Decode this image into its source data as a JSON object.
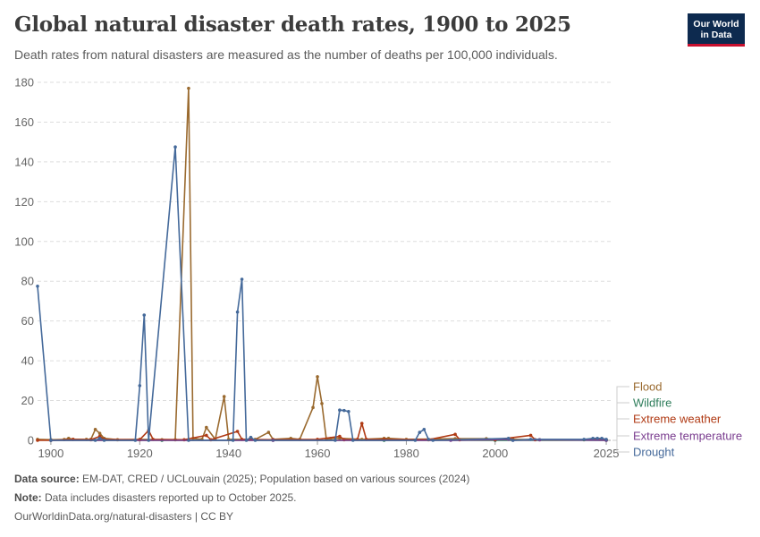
{
  "header": {
    "title": "Global natural disaster death rates, 1900 to 2025",
    "subtitle": "Death rates from natural disasters are measured as the number of deaths per 100,000 individuals."
  },
  "logo": {
    "line1": "Our World",
    "line2": "in Data"
  },
  "footer": {
    "source_label": "Data source:",
    "source_text": "EM-DAT, CRED / UCLouvain (2025); Population based on various sources (2024)",
    "note_label": "Note:",
    "note_text": "Data includes disasters reported up to October 2025.",
    "url_text": "OurWorldinData.org/natural-disasters | CC BY"
  },
  "chart_data": {
    "type": "line",
    "title": "Global natural disaster death rates, 1900 to 2025",
    "ylabel": "",
    "xlabel": "",
    "xlim": [
      1897,
      2026
    ],
    "ylim": [
      0,
      180
    ],
    "x_ticks": [
      1900,
      1920,
      1940,
      1960,
      1980,
      2000,
      2025
    ],
    "y_ticks": [
      0,
      20,
      40,
      60,
      80,
      100,
      120,
      140,
      160,
      180
    ],
    "grid": "horizontal dashed",
    "legend_placement": "right",
    "series": [
      {
        "name": "Flood",
        "color": "#9a6a2f",
        "points": [
          [
            1897,
            0.5
          ],
          [
            1900,
            0.3
          ],
          [
            1903,
            0.4
          ],
          [
            1904,
            1.0
          ],
          [
            1905,
            0.5
          ],
          [
            1908,
            0.5
          ],
          [
            1909,
            0.5
          ],
          [
            1910,
            5.5
          ],
          [
            1911,
            3.5
          ],
          [
            1912,
            1.0
          ],
          [
            1915,
            0.3
          ],
          [
            1920,
            0.5
          ],
          [
            1925,
            0.3
          ],
          [
            1928,
            0.3
          ],
          [
            1931,
            177
          ],
          [
            1932,
            1.0
          ],
          [
            1934,
            0.5
          ],
          [
            1935,
            6.5
          ],
          [
            1937,
            0.5
          ],
          [
            1939,
            22
          ],
          [
            1940,
            0.5
          ],
          [
            1946,
            0.5
          ],
          [
            1949,
            4.0
          ],
          [
            1950,
            0.5
          ],
          [
            1954,
            1.0
          ],
          [
            1956,
            0.5
          ],
          [
            1959,
            16.5
          ],
          [
            1960,
            32
          ],
          [
            1961,
            18.5
          ],
          [
            1962,
            0.5
          ],
          [
            1963,
            1.0
          ],
          [
            1965,
            1.0
          ],
          [
            1970,
            0.5
          ],
          [
            1975,
            1.0
          ],
          [
            1976,
            1.0
          ],
          [
            1980,
            0.5
          ],
          [
            1991,
            0.8
          ],
          [
            1998,
            0.8
          ],
          [
            2004,
            0.5
          ],
          [
            2010,
            0.3
          ],
          [
            2020,
            0.3
          ],
          [
            2025,
            0.2
          ]
        ]
      },
      {
        "name": "Wildfire",
        "color": "#2e7d5b",
        "points": [
          [
            1900,
            0
          ],
          [
            1925,
            0
          ],
          [
            1950,
            0
          ],
          [
            1975,
            0
          ],
          [
            2000,
            0
          ],
          [
            2025,
            0
          ]
        ]
      },
      {
        "name": "Extreme weather",
        "color": "#b03a14",
        "points": [
          [
            1897,
            0
          ],
          [
            1900,
            0
          ],
          [
            1905,
            0.5
          ],
          [
            1909,
            0.3
          ],
          [
            1911,
            2.0
          ],
          [
            1912,
            0.5
          ],
          [
            1920,
            0.3
          ],
          [
            1922,
            5.0
          ],
          [
            1923,
            0.5
          ],
          [
            1930,
            0.3
          ],
          [
            1935,
            2.5
          ],
          [
            1936,
            0.3
          ],
          [
            1942,
            4.5
          ],
          [
            1943,
            0.5
          ],
          [
            1950,
            0.3
          ],
          [
            1960,
            0.5
          ],
          [
            1965,
            2.0
          ],
          [
            1966,
            0.3
          ],
          [
            1969,
            0.5
          ],
          [
            1970,
            8.5
          ],
          [
            1971,
            0.5
          ],
          [
            1975,
            0.5
          ],
          [
            1985,
            0.3
          ],
          [
            1991,
            3.0
          ],
          [
            1992,
            0.3
          ],
          [
            2000,
            0.3
          ],
          [
            2008,
            2.5
          ],
          [
            2009,
            0.3
          ],
          [
            2025,
            0.2
          ]
        ]
      },
      {
        "name": "Extreme temperature",
        "color": "#7a3d8f",
        "points": [
          [
            1900,
            0
          ],
          [
            1950,
            0
          ],
          [
            1990,
            0
          ],
          [
            2003,
            0.5
          ],
          [
            2004,
            0
          ],
          [
            2010,
            0.3
          ],
          [
            2025,
            0
          ]
        ]
      },
      {
        "name": "Drought",
        "color": "#44699a",
        "points": [
          [
            1897,
            77.5
          ],
          [
            1900,
            0
          ],
          [
            1910,
            0
          ],
          [
            1911,
            1.0
          ],
          [
            1912,
            0
          ],
          [
            1919,
            0
          ],
          [
            1920,
            27.5
          ],
          [
            1921,
            63
          ],
          [
            1922,
            0
          ],
          [
            1928,
            147.5
          ],
          [
            1931,
            0
          ],
          [
            1941,
            0
          ],
          [
            1942,
            64.5
          ],
          [
            1943,
            81
          ],
          [
            1944,
            0
          ],
          [
            1945,
            1.5
          ],
          [
            1946,
            0
          ],
          [
            1964,
            0
          ],
          [
            1965,
            15.2
          ],
          [
            1966,
            15.0
          ],
          [
            1967,
            14.5
          ],
          [
            1968,
            0
          ],
          [
            1982,
            0
          ],
          [
            1983,
            4.0
          ],
          [
            1984,
            5.5
          ],
          [
            1985,
            0.5
          ],
          [
            1986,
            0
          ],
          [
            2003,
            1.0
          ],
          [
            2004,
            0
          ],
          [
            2008,
            0.5
          ],
          [
            2020,
            0.5
          ],
          [
            2022,
            1.0
          ],
          [
            2023,
            1.0
          ],
          [
            2024,
            1.0
          ],
          [
            2025,
            0.5
          ]
        ]
      }
    ],
    "legend": [
      {
        "name": "Flood",
        "color": "#9a6a2f"
      },
      {
        "name": "Wildfire",
        "color": "#2e7d5b"
      },
      {
        "name": "Extreme weather",
        "color": "#b03a14"
      },
      {
        "name": "Extreme temperature",
        "color": "#7a3d8f"
      },
      {
        "name": "Drought",
        "color": "#44699a"
      }
    ]
  }
}
